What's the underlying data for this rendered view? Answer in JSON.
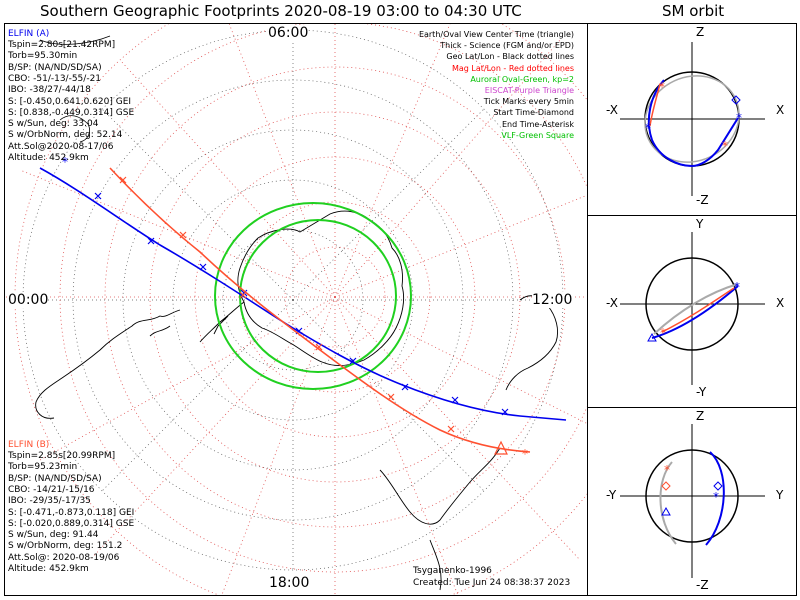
{
  "title": "Southern Geographic Footprints 2020-08-19 03:00 to 04:30 UTC",
  "orbit_title": "SM orbit",
  "map": {
    "time_labels": {
      "top": "06:00",
      "left": "00:00",
      "right": "12:00",
      "bottom": "18:00"
    },
    "model": "Tsyganenko-1996",
    "created": "Created: Tue Jun 24 08:38:37 2023"
  },
  "elfin_a": {
    "name": "ELFIN (A)",
    "color": "#0000ee",
    "lines": [
      "Tspin=2.80s[21.42RPM]",
      "Torb=95.30min",
      "B/SP: (NA/ND/SD/SA)",
      "CBO: -51/-13/-55/-21",
      "IBO: -38/27/-44/18",
      "S: [-0.450,0.641,0.620] GEI",
      "S: [0.838,-0.449,0.314] GSE",
      "S w/Sun, deg: 33.04",
      "S w/OrbNorm, deg: 52.14",
      "Att.Sol@2020-08-17/06",
      "Altitude: 452.9km"
    ]
  },
  "elfin_b": {
    "name": "ELFIN (B)",
    "color": "#ff5030",
    "lines": [
      "Tspin=2.85s[20.99RPM]",
      "Torb=95.23min",
      "B/SP: (NA/ND/SD/SA)",
      "CBO: -14/21/-15/16",
      "IBO: -29/35/-17/35",
      "S: [-0.471,-0.873,0.118] GEI",
      "S: [-0.020,0.889,0.314] GSE",
      "S w/Sun, deg: 91.44",
      "S w/OrbNorm, deg: 151.2",
      "Att.Sol@: 2020-08-19/06",
      "Altitude: 452.9km"
    ]
  },
  "legend": [
    {
      "text": "Earth/Oval View Center Time (triangle)",
      "color": "#000000"
    },
    {
      "text": "Thick - Science (FGM and/or EPD)",
      "color": "#000000"
    },
    {
      "text": "Geo Lat/Lon - Black dotted lines",
      "color": "#000000"
    },
    {
      "text": "Mag Lat/Lon - Red dotted lines",
      "color": "#ff0000"
    },
    {
      "text": "Auroral Oval-Green, kp=2",
      "color": "#00c000"
    },
    {
      "text": "EISCAT-Purple Triangle",
      "color": "#cc44cc"
    },
    {
      "text": "Tick Marks every 5min",
      "color": "#000000"
    },
    {
      "text": "Start Time-Diamond",
      "color": "#000000"
    },
    {
      "text": "End Time-Asterisk",
      "color": "#000000"
    },
    {
      "text": "VLF-Green Square",
      "color": "#00c000"
    }
  ],
  "orbit_panels": {
    "xz": {
      "top": "Z",
      "bottom": "-Z",
      "left": "-X",
      "right": "X"
    },
    "xy": {
      "top": "Y",
      "bottom": "-Y",
      "left": "-X",
      "right": "X"
    },
    "yz": {
      "top": "Z",
      "bottom": "-Z",
      "left": "-Y",
      "right": "Y"
    }
  }
}
